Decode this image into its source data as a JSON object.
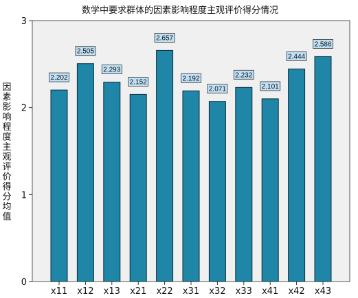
{
  "chart_data": {
    "type": "bar",
    "title": "数学中要求群体的因素影响程度主观评价得分情况",
    "xlabel": "",
    "ylabel": "因素影响程度主观评价得分均值",
    "categories": [
      "x11",
      "x12",
      "x13",
      "x21",
      "x22",
      "x31",
      "x32",
      "x33",
      "x41",
      "x42",
      "x43"
    ],
    "values": [
      2.202,
      2.505,
      2.293,
      2.152,
      2.657,
      2.192,
      2.071,
      2.232,
      2.101,
      2.444,
      2.586
    ],
    "data_labels": [
      "2.202",
      "2.505",
      "2.293",
      "2.152",
      "2.657",
      "2.192",
      "2.071",
      "2.232",
      "2.101",
      "2.444",
      "2.586"
    ],
    "ylim": [
      0,
      3
    ],
    "yticks": [
      0,
      1,
      2,
      3
    ],
    "grid": false,
    "colors": {
      "bar": "#1f86a8",
      "bar_edge": "#0d2e3a",
      "plot_background": "#f0f0f0",
      "label_background": "#bfe0f5",
      "label_border": "#333333"
    }
  }
}
